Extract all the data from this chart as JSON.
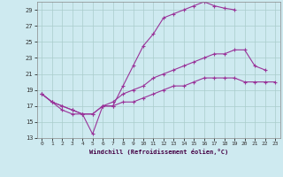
{
  "background_color": "#ceeaf0",
  "grid_color": "#aacccc",
  "line_color": "#993399",
  "xlim": [
    -0.5,
    23.5
  ],
  "ylim": [
    13,
    30
  ],
  "yticks": [
    13,
    15,
    17,
    19,
    21,
    23,
    25,
    27,
    29
  ],
  "xticks": [
    0,
    1,
    2,
    3,
    4,
    5,
    6,
    7,
    8,
    9,
    10,
    11,
    12,
    13,
    14,
    15,
    16,
    17,
    18,
    19,
    20,
    21,
    22,
    23
  ],
  "xlabel": "Windchill (Refroidissement éolien,°C)",
  "line1_x": [
    0,
    1,
    2,
    3,
    4,
    5,
    6,
    7,
    8,
    9,
    10,
    11,
    12,
    13,
    14,
    15,
    16,
    17,
    18,
    19,
    20,
    21,
    22,
    23
  ],
  "line1_y": [
    18.5,
    17.5,
    16.5,
    16.0,
    16.0,
    13.5,
    17.0,
    17.0,
    19.5,
    22.0,
    24.5,
    26.0,
    28.0,
    28.5,
    29.0,
    29.5,
    30.0,
    29.5,
    29.2,
    29.0,
    null,
    null,
    null,
    null
  ],
  "line2_x": [
    0,
    1,
    2,
    3,
    4,
    5,
    6,
    7,
    8,
    9,
    10,
    11,
    12,
    13,
    14,
    15,
    16,
    17,
    18,
    19,
    20,
    21,
    22,
    23
  ],
  "line2_y": [
    18.5,
    17.5,
    17.0,
    16.5,
    16.0,
    16.0,
    17.0,
    17.5,
    18.5,
    19.0,
    19.5,
    20.5,
    21.0,
    21.5,
    22.0,
    22.5,
    23.0,
    23.5,
    23.5,
    24.0,
    24.0,
    22.0,
    21.5,
    null
  ],
  "line3_x": [
    0,
    1,
    2,
    3,
    4,
    5,
    6,
    7,
    8,
    9,
    10,
    11,
    12,
    13,
    14,
    15,
    16,
    17,
    18,
    19,
    20,
    21,
    22,
    23
  ],
  "line3_y": [
    18.5,
    17.5,
    17.0,
    16.5,
    16.0,
    16.0,
    17.0,
    17.0,
    17.5,
    17.5,
    18.0,
    18.5,
    19.0,
    19.5,
    19.5,
    20.0,
    20.5,
    20.5,
    20.5,
    20.5,
    20.0,
    20.0,
    20.0,
    20.0
  ]
}
